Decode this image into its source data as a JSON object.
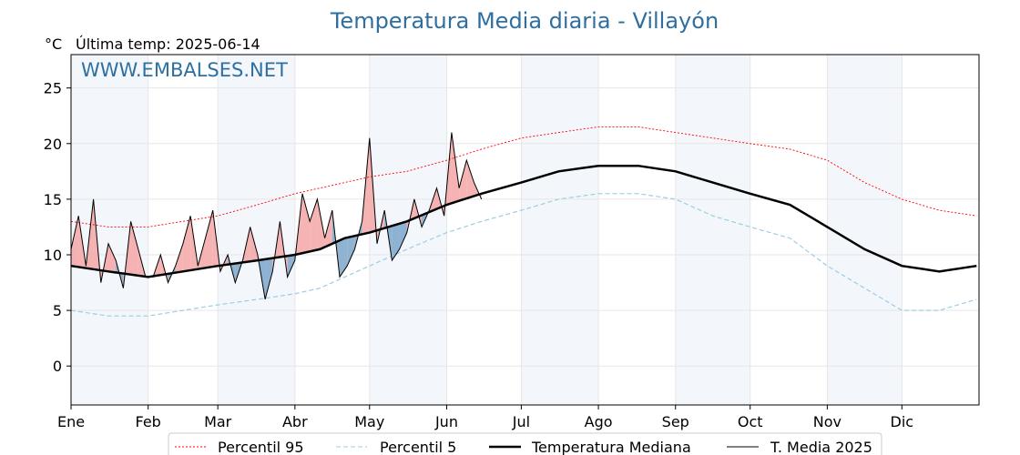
{
  "header": {
    "title": "Temperatura Media diaria - Villayón",
    "unit": "°C",
    "last_temp": "Última temp: 2025-06-14",
    "watermark": "WWW.EMBALSES.NET"
  },
  "chart_data": {
    "type": "line",
    "title": "Temperatura Media diaria - Villayón",
    "ylabel": "°C",
    "xlabel": "",
    "ylim": [
      -3.5,
      28
    ],
    "xlim": [
      0,
      365
    ],
    "yticks": [
      0,
      5,
      10,
      15,
      20,
      25
    ],
    "months": [
      "Ene",
      "Feb",
      "Mar",
      "Abr",
      "May",
      "Jun",
      "Jul",
      "Ago",
      "Sep",
      "Oct",
      "Nov",
      "Dic"
    ],
    "month_start_day": [
      0,
      31,
      59,
      90,
      120,
      151,
      181,
      212,
      243,
      273,
      304,
      334
    ],
    "grid": true,
    "legend_position": "bottom",
    "series": [
      {
        "name": "Percentil 95",
        "style": "dotted",
        "color": "#ff0000",
        "x": [
          0,
          15,
          31,
          45,
          59,
          75,
          90,
          100,
          110,
          120,
          135,
          151,
          165,
          181,
          196,
          212,
          228,
          243,
          258,
          273,
          289,
          304,
          319,
          334,
          349,
          364
        ],
        "y": [
          13,
          12.5,
          12.5,
          13,
          13.5,
          14.5,
          15.5,
          16,
          16.5,
          17,
          17.5,
          18.5,
          19.5,
          20.5,
          21,
          21.5,
          21.5,
          21,
          20.5,
          20,
          19.5,
          18.5,
          16.5,
          15,
          14,
          13.5
        ]
      },
      {
        "name": "Percentil 5",
        "style": "dashed",
        "color": "#9ccde2",
        "x": [
          0,
          15,
          31,
          45,
          59,
          75,
          90,
          100,
          110,
          120,
          135,
          151,
          165,
          181,
          196,
          212,
          228,
          243,
          258,
          273,
          289,
          304,
          319,
          334,
          349,
          364
        ],
        "y": [
          5,
          4.5,
          4.5,
          5,
          5.5,
          6,
          6.5,
          7,
          8,
          9,
          10.5,
          12,
          13,
          14,
          15,
          15.5,
          15.5,
          15,
          13.5,
          12.5,
          11.5,
          9,
          7,
          5,
          5,
          6
        ]
      },
      {
        "name": "Temperatura Mediana",
        "style": "solid-thick",
        "color": "#000000",
        "x": [
          0,
          15,
          31,
          45,
          59,
          75,
          90,
          100,
          110,
          120,
          135,
          151,
          165,
          181,
          196,
          212,
          228,
          243,
          258,
          273,
          289,
          304,
          319,
          334,
          349,
          364
        ],
        "y": [
          9,
          8.5,
          8,
          8.5,
          9,
          9.5,
          10,
          10.5,
          11.5,
          12,
          13,
          14.5,
          15.5,
          16.5,
          17.5,
          18,
          18,
          17.5,
          16.5,
          15.5,
          14.5,
          12.5,
          10.5,
          9,
          8.5,
          9
        ]
      },
      {
        "name": "T. Media 2025",
        "style": "solid-thin",
        "color": "#000000",
        "x": [
          0,
          3,
          6,
          9,
          12,
          15,
          18,
          21,
          24,
          27,
          30,
          33,
          36,
          39,
          42,
          45,
          48,
          51,
          54,
          57,
          60,
          63,
          66,
          69,
          72,
          75,
          78,
          81,
          84,
          87,
          90,
          93,
          96,
          99,
          102,
          105,
          108,
          111,
          114,
          117,
          120,
          123,
          126,
          129,
          132,
          135,
          138,
          141,
          144,
          147,
          150,
          153,
          156,
          159,
          162,
          165
        ],
        "y": [
          10.5,
          13.5,
          9,
          15,
          7.5,
          11,
          9.5,
          7,
          13,
          10.5,
          8,
          8,
          10,
          7.5,
          9,
          11,
          13.5,
          9,
          11.5,
          14,
          8.5,
          10,
          7.5,
          9.5,
          12.5,
          10,
          6,
          8.5,
          13,
          8,
          9.5,
          15.5,
          13,
          15,
          11.5,
          14,
          8,
          9,
          10.5,
          13,
          20.5,
          11,
          14,
          9.5,
          10.5,
          12,
          15,
          12.5,
          14,
          16,
          13.5,
          21,
          16,
          18.5,
          16.5,
          15
        ]
      }
    ]
  },
  "legend": {
    "items": [
      {
        "label": "Percentil 95"
      },
      {
        "label": "Percentil 5"
      },
      {
        "label": "Temperatura Mediana"
      },
      {
        "label": "T. Media 2025"
      }
    ]
  }
}
